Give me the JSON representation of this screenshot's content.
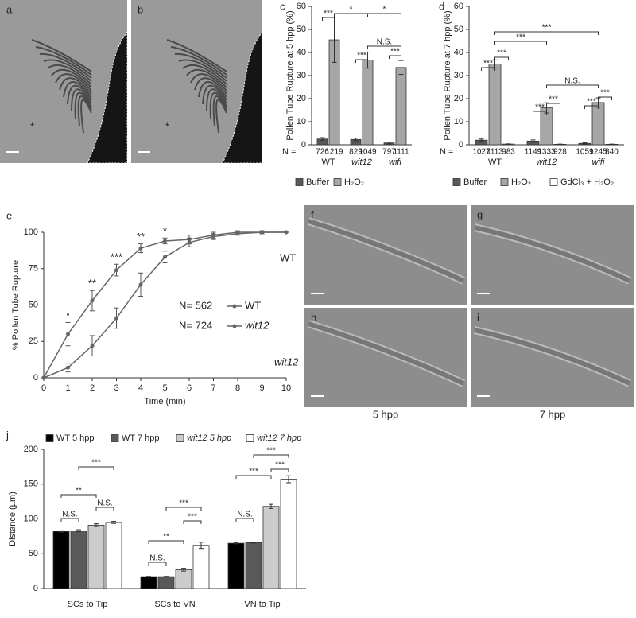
{
  "images": [
    {
      "panel": "a",
      "asterisk": "*"
    },
    {
      "panel": "b",
      "asterisk": "*"
    },
    {
      "panel": "f"
    },
    {
      "panel": "g"
    },
    {
      "panel": "h"
    },
    {
      "panel": "i"
    }
  ],
  "image_rows": [
    "WT",
    "wit12"
  ],
  "image_cols": [
    "5 hpp",
    "7 hpp"
  ],
  "chart_data": [
    {
      "type": "bar",
      "panel": "c",
      "ylabel": "Pollen Tube Rupture at 5 hpp (%)",
      "categories": [
        "WT",
        "wit12",
        "wifi"
      ],
      "n_label": "N =",
      "ylim": [
        0,
        60
      ],
      "yticks": [
        0,
        10,
        20,
        30,
        40,
        50,
        60
      ],
      "series": [
        {
          "name": "Buffer",
          "color": "#595959",
          "values": [
            2.5,
            2.3,
            0.8
          ],
          "errors": [
            0.6,
            0.6,
            0.4
          ],
          "n": [
            726,
            829,
            797
          ]
        },
        {
          "name": "H₂O₂",
          "color": "#a6a6a6",
          "values": [
            45.5,
            36.7,
            33.5
          ],
          "errors": [
            9.8,
            3.5,
            3.0
          ],
          "n": [
            1219,
            1049,
            1111
          ]
        }
      ],
      "annotations": [
        "***",
        "*",
        "*",
        "N.S.",
        "***",
        "***"
      ]
    },
    {
      "type": "bar",
      "panel": "d",
      "ylabel": "Pollen Tube Rupture at 7 hpp (%)",
      "categories": [
        "WT",
        "wit12",
        "wifi"
      ],
      "n_label": "N =",
      "ylim": [
        0,
        60
      ],
      "yticks": [
        0,
        10,
        20,
        30,
        40,
        50,
        60
      ],
      "series": [
        {
          "name": "Buffer",
          "color": "#595959",
          "values": [
            2,
            1.6,
            0.6
          ],
          "errors": [
            0.5,
            0.5,
            0.3
          ],
          "n": [
            1027,
            1149,
            1059
          ]
        },
        {
          "name": "H₂O₂",
          "color": "#a6a6a6",
          "values": [
            35,
            16,
            18.3
          ],
          "errors": [
            1.8,
            2.2,
            2.0
          ],
          "n": [
            1113,
            1333,
            1245
          ]
        },
        {
          "name": "GdCl₃ + H₂O₂",
          "color": "#ffffff",
          "values": [
            0.3,
            0.2,
            0.2
          ],
          "errors": [
            0.1,
            0.1,
            0.1
          ],
          "n": [
            983,
            928,
            840
          ]
        }
      ],
      "annotations": [
        "***",
        "***",
        "***",
        "***",
        "N.S.",
        "***",
        "***",
        "***",
        "***"
      ]
    },
    {
      "type": "line",
      "panel": "e",
      "ylabel": "% Pollen Tube Rupture",
      "xlabel": "Time (min)",
      "x": [
        0,
        1,
        2,
        3,
        4,
        5,
        6,
        7,
        8,
        9,
        10
      ],
      "xlim": [
        0,
        10
      ],
      "xticks": [
        0,
        1,
        2,
        3,
        4,
        5,
        6,
        7,
        8,
        9,
        10
      ],
      "ylim": [
        0,
        100
      ],
      "yticks": [
        0,
        25,
        50,
        75,
        100
      ],
      "series": [
        {
          "name": "WT",
          "n_label": "N= 562",
          "color": "#666666",
          "values": [
            0,
            30,
            53,
            74,
            89,
            94,
            95,
            98,
            100,
            100,
            100
          ],
          "errors": [
            0,
            8,
            7,
            4,
            3,
            2,
            3,
            2,
            1,
            1,
            0
          ]
        },
        {
          "name": "wit12",
          "n_label": "N= 724",
          "color": "#666666",
          "values": [
            0,
            7,
            22,
            41,
            64,
            83,
            93,
            97,
            99,
            100,
            100
          ],
          "errors": [
            0,
            3,
            7,
            7,
            8,
            4,
            3,
            2,
            1,
            1,
            0
          ]
        }
      ],
      "annotations": [
        null,
        "*",
        "**",
        "***",
        "**",
        "*",
        null,
        null,
        null,
        null,
        null
      ]
    },
    {
      "type": "bar",
      "panel": "j",
      "ylabel": "Distance (µm)",
      "categories": [
        "SCs to Tip",
        "SCs to VN",
        "VN to Tip"
      ],
      "ylim": [
        0,
        200
      ],
      "yticks": [
        0,
        50,
        100,
        150,
        200
      ],
      "series": [
        {
          "name": "WT 5 hpp",
          "color": "#000000",
          "values": [
            82,
            17,
            65
          ],
          "errors": [
            1,
            0.5,
            0.8
          ]
        },
        {
          "name": "WT 7 hpp",
          "color": "#595959",
          "values": [
            83,
            17,
            66
          ],
          "errors": [
            1.5,
            0.5,
            0.8
          ]
        },
        {
          "name": "wit12 5 hpp",
          "color": "#cccccc",
          "values": [
            91,
            27,
            118
          ],
          "errors": [
            2,
            2,
            3
          ]
        },
        {
          "name": "wit12 7 hpp",
          "color": "#ffffff",
          "values": [
            95,
            62,
            157
          ],
          "errors": [
            1.5,
            4.5,
            5
          ]
        }
      ],
      "annotations": [
        "N.S.",
        "**",
        "***",
        "N.S.",
        "N.S.",
        "**",
        "***",
        "***",
        "N.S.",
        "***",
        "***",
        "***"
      ]
    }
  ]
}
